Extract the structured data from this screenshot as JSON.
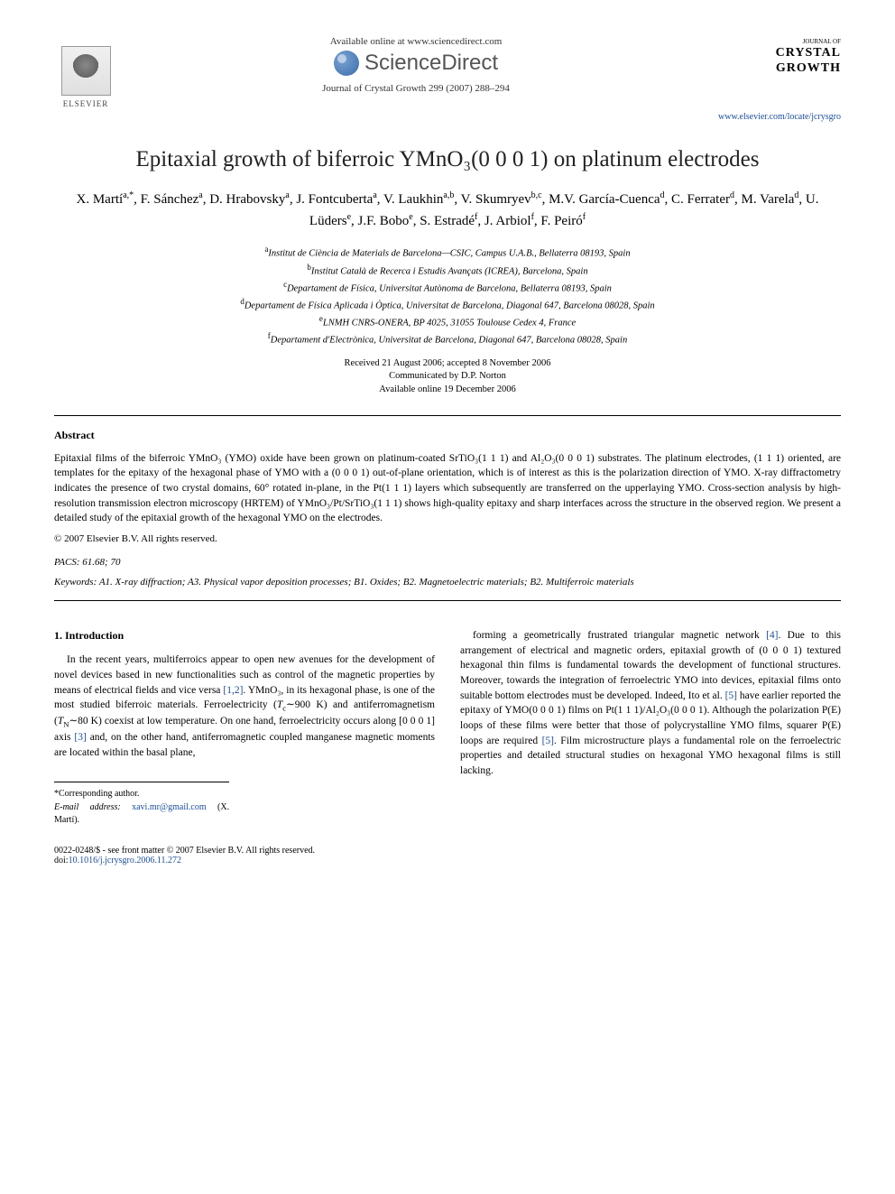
{
  "header": {
    "elsevier_label": "ELSEVIER",
    "available_online": "Available online at www.sciencedirect.com",
    "sciencedirect": "ScienceDirect",
    "journal_ref": "Journal of Crystal Growth 299 (2007) 288–294",
    "journal_of": "JOURNAL OF",
    "crystal": "CRYSTAL",
    "growth": "GROWTH",
    "locate_url": "www.elsevier.com/locate/jcrysgro"
  },
  "colors": {
    "link": "#1a4d99",
    "text": "#000000",
    "sd_blue": "#3a6ca8",
    "background": "#ffffff"
  },
  "title": "Epitaxial growth of biferroic YMnO₃(0 0 0 1) on platinum electrodes",
  "authors_html": "X. Martí<sup>a,*</sup>, F. Sánchez<sup>a</sup>, D. Hrabovsky<sup>a</sup>, J. Fontcuberta<sup>a</sup>, V. Laukhin<sup>a,b</sup>, V. Skumryev<sup>b,c</sup>, M.V. García-Cuenca<sup>d</sup>, C. Ferrater<sup>d</sup>, M. Varela<sup>d</sup>, U. Lüders<sup>e</sup>, J.F. Bobo<sup>e</sup>, S. Estradé<sup>f</sup>, J. Arbiol<sup>f</sup>, F. Peiró<sup>f</sup>",
  "affiliations": [
    {
      "sup": "a",
      "text": "Institut de Ciència de Materials de Barcelona—CSIC, Campus U.A.B., Bellaterra 08193, Spain"
    },
    {
      "sup": "b",
      "text": "Institut Català de Recerca i Estudis Avançats (ICREA), Barcelona, Spain"
    },
    {
      "sup": "c",
      "text": "Departament de Física, Universitat Autònoma de Barcelona, Bellaterra 08193, Spain"
    },
    {
      "sup": "d",
      "text": "Departament de Física Aplicada i Òptica, Universitat de Barcelona, Diagonal 647, Barcelona 08028, Spain"
    },
    {
      "sup": "e",
      "text": "LNMH CNRS-ONERA, BP 4025, 31055 Toulouse Cedex 4, France"
    },
    {
      "sup": "f",
      "text": "Departament d'Electrònica, Universitat de Barcelona, Diagonal 647, Barcelona 08028, Spain"
    }
  ],
  "dates": {
    "received": "Received 21 August 2006; accepted 8 November 2006",
    "communicated": "Communicated by D.P. Norton",
    "online": "Available online 19 December 2006"
  },
  "abstract": {
    "heading": "Abstract",
    "body": "Epitaxial films of the biferroic YMnO₃ (YMO) oxide have been grown on platinum-coated SrTiO₃(1 1 1) and Al₂O₃(0 0 0 1) substrates. The platinum electrodes, (1 1 1) oriented, are templates for the epitaxy of the hexagonal phase of YMO with a (0 0 0 1) out-of-plane orientation, which is of interest as this is the polarization direction of YMO. X-ray diffractometry indicates the presence of two crystal domains, 60° rotated in-plane, in the Pt(1 1 1) layers which subsequently are transferred on the upperlaying YMO. Cross-section analysis by high-resolution transmission electron microscopy (HRTEM) of YMnO₃/Pt/SrTiO₃(1 1 1) shows high-quality epitaxy and sharp interfaces across the structure in the observed region. We present a detailed study of the epitaxial growth of the hexagonal YMO on the electrodes.",
    "copyright": "© 2007 Elsevier B.V. All rights reserved."
  },
  "pacs": {
    "label": "PACS:",
    "value": "61.68; 70"
  },
  "keywords": {
    "label": "Keywords:",
    "value": "A1. X-ray diffraction; A3. Physical vapor deposition processes; B1. Oxides; B2. Magnetoelectric materials; B2. Multiferroic materials"
  },
  "section1": {
    "heading": "1. Introduction",
    "col1_html": "In the recent years, multiferroics appear to open new avenues for the development of novel devices based in new functionalities such as control of the magnetic properties by means of electrical fields and vice versa <span class='ref-link'>[1,2]</span>. YMnO₃, in its hexagonal phase, is one of the most studied biferroic materials. Ferroelectricity (<i>T</i><sub>c</sub>∼900 K) and antiferromagnetism (<i>T</i><sub>N</sub>∼80 K) coexist at low temperature. On one hand, ferroelectricity occurs along [0 0 0 1] axis <span class='ref-link'>[3]</span> and, on the other hand, antiferromagnetic coupled manganese magnetic moments are located within the basal plane,",
    "col2_html": "forming a geometrically frustrated triangular magnetic network <span class='ref-link'>[4]</span>. Due to this arrangement of electrical and magnetic orders, epitaxial growth of (0 0 0 1) textured hexagonal thin films is fundamental towards the development of functional structures. Moreover, towards the integration of ferroelectric YMO into devices, epitaxial films onto suitable bottom electrodes must be developed. Indeed, Ito et al. <span class='ref-link'>[5]</span> have earlier reported the epitaxy of YMO(0 0 0 1) films on Pt(1 1 1)/Al₂O₃(0 0 0 1). Although the polarization P(E) loops of these films were better that those of polycrystalline YMO films, squarer P(E) loops are required <span class='ref-link'>[5]</span>. Film microstructure plays a fundamental role on the ferroelectric properties and detailed structural studies on hexagonal YMO hexagonal films is still lacking."
  },
  "footnotes": {
    "corresp": "*Corresponding author.",
    "email_label": "E-mail address:",
    "email_addr": "xavi.mr@gmail.com",
    "email_name": "(X. Martí)."
  },
  "footer": {
    "front_matter": "0022-0248/$ - see front matter © 2007 Elsevier B.V. All rights reserved.",
    "doi_label": "doi:",
    "doi": "10.1016/j.jcrysgro.2006.11.272"
  }
}
